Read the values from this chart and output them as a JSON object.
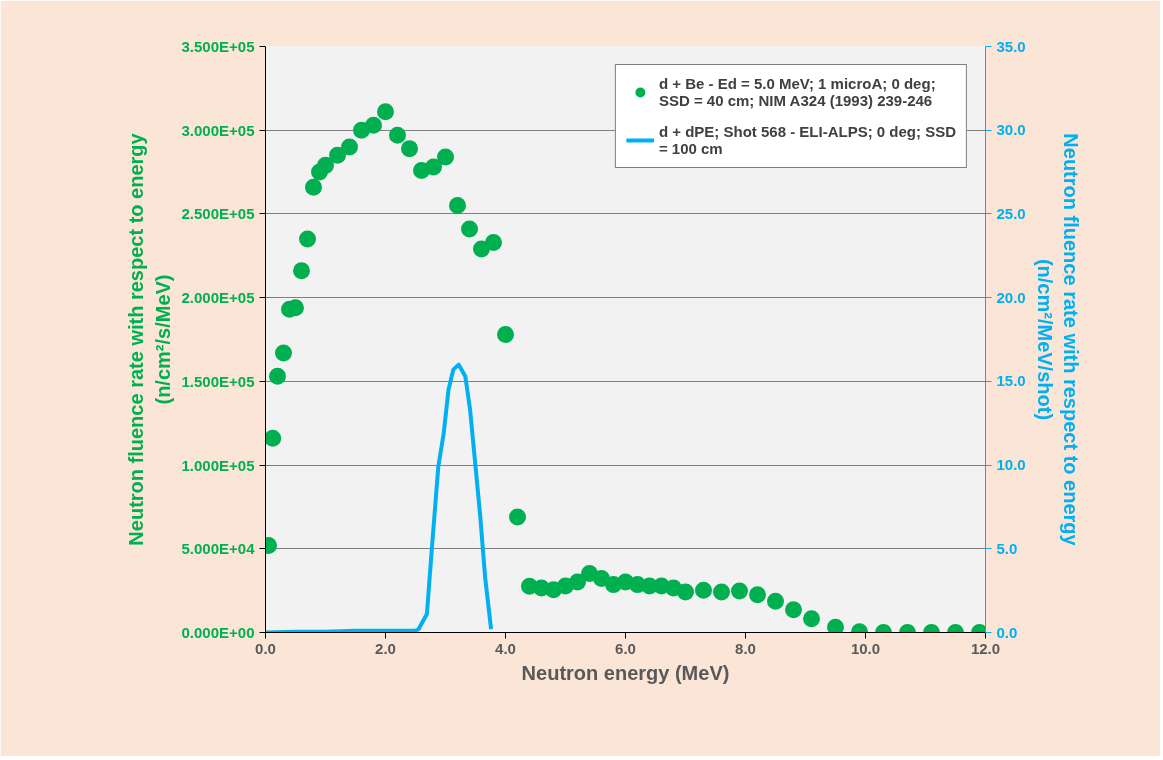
{
  "chart_data": {
    "type": "scatter",
    "xlabel": "Neutron energy (MeV)",
    "ylabel": "Neutron fluence rate with respect to energy (n/cm²/s/MeV)",
    "y2label": "Neutron fluence rate with respect to energy (n/cm²/MeV/shot)",
    "xlim": [
      0,
      12
    ],
    "xticks": [
      {
        "value": 0,
        "label": "0.0"
      },
      {
        "value": 2,
        "label": "2.0"
      },
      {
        "value": 4,
        "label": "4.0"
      },
      {
        "value": 6,
        "label": "6.0"
      },
      {
        "value": 8,
        "label": "8.0"
      },
      {
        "value": 10,
        "label": "10.0"
      },
      {
        "value": 12,
        "label": "12.0"
      }
    ],
    "ylim": [
      0,
      350000
    ],
    "yticks": [
      {
        "value": 0,
        "label": "0.000E+00"
      },
      {
        "value": 50000,
        "label": "5.000E+04"
      },
      {
        "value": 100000,
        "label": "1.000E+05"
      },
      {
        "value": 150000,
        "label": "1.500E+05"
      },
      {
        "value": 200000,
        "label": "2.000E+05"
      },
      {
        "value": 250000,
        "label": "2.500E+05"
      },
      {
        "value": 300000,
        "label": "3.000E+05"
      },
      {
        "value": 350000,
        "label": "3.500E+05"
      }
    ],
    "y2lim": [
      0,
      35
    ],
    "y2ticks": [
      {
        "value": 0,
        "label": "0.0"
      },
      {
        "value": 5,
        "label": "5.0"
      },
      {
        "value": 10,
        "label": "10.0"
      },
      {
        "value": 15,
        "label": "15.0"
      },
      {
        "value": 20,
        "label": "20.0"
      },
      {
        "value": 25,
        "label": "25.0"
      },
      {
        "value": 30,
        "label": "30.0"
      },
      {
        "value": 35,
        "label": "35.0"
      }
    ],
    "grid": "y",
    "legend": "top right",
    "series": [
      {
        "name": "d + Be - Ed = 5.0 MeV; 1 microA; 0 deg; SSD = 40 cm; NIM A324 (1993) 239-246",
        "marker": "circle",
        "color": "#00b050",
        "x": [
          0.05,
          0.12,
          0.2,
          0.3,
          0.4,
          0.5,
          0.6,
          0.7,
          0.8,
          0.9,
          1.0,
          1.2,
          1.4,
          1.6,
          1.8,
          2.0,
          2.2,
          2.4,
          2.6,
          2.8,
          3.0,
          3.2,
          3.4,
          3.6,
          3.8,
          4.0,
          4.2,
          4.4,
          4.6,
          4.8,
          5.0,
          5.2,
          5.4,
          5.6,
          5.8,
          6.0,
          6.2,
          6.4,
          6.6,
          6.8,
          7.0,
          7.3,
          7.6,
          7.9,
          8.2,
          8.5,
          8.8,
          9.1,
          9.5,
          9.9,
          10.3,
          10.7,
          11.1,
          11.5,
          11.9
        ],
        "values": [
          52000,
          116000,
          153000,
          167000,
          193000,
          194000,
          216000,
          235000,
          266000,
          275000,
          279000,
          285000,
          290000,
          300000,
          303000,
          311000,
          297000,
          289000,
          276000,
          278000,
          284000,
          255000,
          241000,
          229000,
          233000,
          178000,
          69000,
          27600,
          26600,
          25600,
          27800,
          30100,
          35200,
          32200,
          28600,
          30100,
          28600,
          27800,
          27800,
          26600,
          24200,
          25200,
          24200,
          24800,
          22600,
          18600,
          13600,
          8200,
          3200,
          500,
          0,
          0,
          0,
          0,
          0
        ]
      },
      {
        "name": "d + dPE; Shot 568 - ELI-ALPS; 0 deg; SSD = 100 cm",
        "type": "line",
        "axis": "y2",
        "color": "#00b0f0",
        "x": [
          0,
          0.5,
          1.0,
          1.5,
          2.0,
          2.5,
          2.55,
          2.69,
          2.77,
          2.88,
          2.97,
          3.05,
          3.13,
          3.22,
          3.33,
          3.41,
          3.49,
          3.58,
          3.66,
          3.76
        ],
        "values": [
          0,
          0.05,
          0.05,
          0.1,
          0.1,
          0.1,
          0.2,
          1.1,
          4.9,
          9.9,
          11.9,
          14.5,
          15.7,
          16.0,
          15.3,
          13.3,
          10.3,
          6.9,
          3.3,
          0.2
        ]
      }
    ]
  }
}
